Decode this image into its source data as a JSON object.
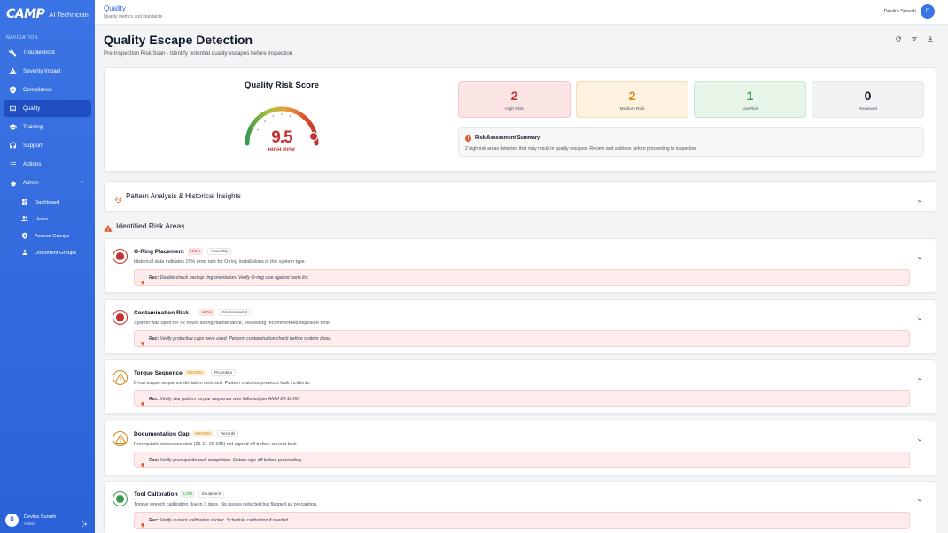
{
  "app": {
    "logo": "CAMP",
    "name": "AI Technician"
  },
  "nav": {
    "heading": "NAVIGATION",
    "items": [
      {
        "label": "Troubleshoot",
        "icon": "wrench-icon"
      },
      {
        "label": "Severity Impact",
        "icon": "warning-icon"
      },
      {
        "label": "Compliance",
        "icon": "shield-check-icon"
      },
      {
        "label": "Quality",
        "icon": "quality-icon",
        "active": true
      },
      {
        "label": "Training",
        "icon": "graduation-cap-icon"
      },
      {
        "label": "Support",
        "icon": "headset-icon"
      },
      {
        "label": "Actions",
        "icon": "list-checks-icon"
      },
      {
        "label": "Admin",
        "icon": "admin-gear-icon",
        "expanded": true
      }
    ],
    "admin_sub": [
      {
        "label": "Dashboard",
        "icon": "dashboard-icon"
      },
      {
        "label": "Users",
        "icon": "users-icon"
      },
      {
        "label": "Access Groups",
        "icon": "access-groups-icon"
      },
      {
        "label": "Document Groups",
        "icon": "document-groups-icon"
      }
    ]
  },
  "user": {
    "initial": "D",
    "name": "Devika Suresh",
    "role": "Admin"
  },
  "topbar": {
    "title": "Quality",
    "subtitle": "Quality metrics and standards"
  },
  "page": {
    "title": "Quality Escape Detection",
    "subtitle": "Pre-Inspection Risk Scan - Identify potential quality escapes before inspection"
  },
  "score": {
    "title": "Quality Risk Score",
    "value": "9.5",
    "max": 10,
    "label": "HIGH RISK"
  },
  "stats": [
    {
      "value": "2",
      "label": "High Risk"
    },
    {
      "value": "2",
      "label": "Medium Risk"
    },
    {
      "value": "1",
      "label": "Low Risk"
    },
    {
      "value": "0",
      "label": "Reviewed"
    }
  ],
  "summary": {
    "icon": "!",
    "title": "Risk Assessment Summary",
    "text": "2 high risk areas detected that may result in quality escapes. Review and address before proceeding to inspection."
  },
  "pattern": {
    "title": "Pattern Analysis & Historical Insights"
  },
  "risks_section": {
    "title": "Identified Risk Areas"
  },
  "risks": [
    {
      "title": "O-Ring Placement",
      "severity": "HIGH",
      "category": "Assembly",
      "description": "Historical data indicates 15% error rate for O-ring installations in this system type.",
      "rec_label": "Rec:",
      "rec_text": "Double check backup ring orientation. Verify O-ring size against parts list."
    },
    {
      "title": "Contamination Risk",
      "severity": "HIGH",
      "category": "Environmental",
      "description": "System was open for >2 hours during maintenance, exceeding recommended exposure time.",
      "rec_label": "Rec:",
      "rec_text": "Verify protective caps were used. Perform contamination check before system close."
    },
    {
      "title": "Torque Sequence",
      "severity": "MEDIUM",
      "category": "Procedure",
      "description": "B-nut torque sequence deviation detected. Pattern matches previous leak incidents.",
      "rec_label": "Rec:",
      "rec_text": "Verify star pattern torque sequence was followed per AMM 29-11-00."
    },
    {
      "title": "Documentation Gap",
      "severity": "MEDIUM",
      "category": "Records",
      "description": "Prerequisite inspection step (29-11-00-005) not signed off before current task.",
      "rec_label": "Rec:",
      "rec_text": "Verify prerequisite task completion. Obtain sign-off before proceeding."
    },
    {
      "title": "Tool Calibration",
      "severity": "LOW",
      "category": "Equipment",
      "description": "Torque wrench calibration due in 3 days. No issues detected but flagged as precaution.",
      "rec_label": "Rec:",
      "rec_text": "Verify current calibration sticker. Schedule calibration if needed."
    }
  ],
  "colors": {
    "sidebar": "#2c62d8",
    "high": "#c53030",
    "medium": "#d08a16",
    "low": "#3a9a4b",
    "accent": "#e05a2b"
  }
}
